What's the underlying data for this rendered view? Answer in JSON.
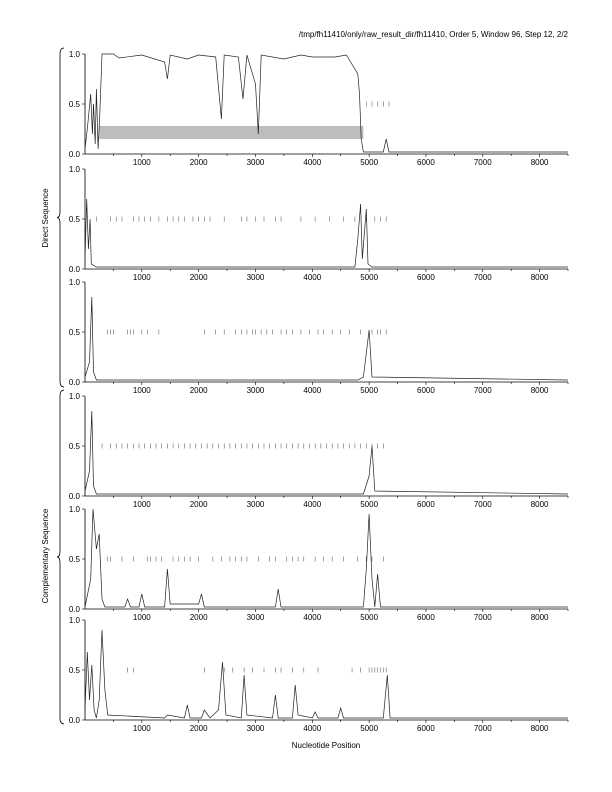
{
  "header": {
    "title": "/tmp/fh11410/only/raw_result_dir/fh11410, Order 5, Window 96, Step 12, 2/2"
  },
  "group_labels": {
    "direct": "Direct Sequence",
    "complementary": "Complementary Sequence"
  },
  "xlabel": "Nucleotide Position",
  "chart_data": {
    "type": "line",
    "title": "/tmp/fh11410/only/raw_result_dir/fh11410, Order 5, Window 96, Step 12, 2/2",
    "xlabel": "Nucleotide Position",
    "xlim": [
      0,
      8500
    ],
    "ylim": [
      0,
      1.0
    ],
    "x_ticks": [
      1000,
      2000,
      3000,
      4000,
      5000,
      6000,
      7000,
      8000
    ],
    "y_ticks": [
      0.0,
      0.5,
      1.0
    ],
    "grid": false,
    "legend": "none",
    "panels": [
      {
        "group": "Direct Sequence",
        "line": [
          [
            0,
            0.05
          ],
          [
            50,
            0.3
          ],
          [
            100,
            0.6
          ],
          [
            130,
            0.2
          ],
          [
            150,
            0.5
          ],
          [
            180,
            0.1
          ],
          [
            200,
            0.65
          ],
          [
            230,
            0.05
          ],
          [
            260,
            0.4
          ],
          [
            300,
            1.0
          ],
          [
            500,
            1.0
          ],
          [
            600,
            0.96
          ],
          [
            1000,
            0.99
          ],
          [
            1400,
            0.92
          ],
          [
            1450,
            0.75
          ],
          [
            1500,
            0.99
          ],
          [
            1800,
            0.95
          ],
          [
            2000,
            0.99
          ],
          [
            2300,
            0.97
          ],
          [
            2400,
            0.35
          ],
          [
            2450,
            0.99
          ],
          [
            2700,
            0.97
          ],
          [
            2780,
            0.55
          ],
          [
            2850,
            0.99
          ],
          [
            3000,
            0.7
          ],
          [
            3050,
            0.2
          ],
          [
            3100,
            0.99
          ],
          [
            3500,
            0.95
          ],
          [
            3800,
            0.99
          ],
          [
            4000,
            0.97
          ],
          [
            4400,
            0.97
          ],
          [
            4600,
            0.99
          ],
          [
            4800,
            0.8
          ],
          [
            4830,
            0.6
          ],
          [
            4860,
            0.15
          ],
          [
            4900,
            0.02
          ],
          [
            5200,
            0.02
          ],
          [
            5250,
            0.02
          ],
          [
            5300,
            0.15
          ],
          [
            5350,
            0.02
          ],
          [
            8500,
            0.02
          ]
        ],
        "band": {
          "x": [
            250,
            4900
          ],
          "y": [
            0.15,
            0.28
          ]
        },
        "ticks": [
          4950,
          5050,
          5150,
          5250,
          5350
        ]
      },
      {
        "group": "Direct Sequence",
        "line": [
          [
            0,
            0.1
          ],
          [
            30,
            0.7
          ],
          [
            60,
            0.2
          ],
          [
            90,
            0.5
          ],
          [
            110,
            0.05
          ],
          [
            200,
            0.02
          ],
          [
            4750,
            0.02
          ],
          [
            4800,
            0.3
          ],
          [
            4850,
            0.65
          ],
          [
            4880,
            0.1
          ],
          [
            4950,
            0.6
          ],
          [
            4980,
            0.05
          ],
          [
            5050,
            0.02
          ],
          [
            8500,
            0.02
          ]
        ],
        "ticks": [
          200,
          450,
          550,
          650,
          850,
          950,
          1050,
          1150,
          1300,
          1450,
          1550,
          1650,
          1750,
          1900,
          2000,
          2100,
          2200,
          2450,
          2750,
          2850,
          3000,
          3150,
          3350,
          3450,
          3800,
          4050,
          4300,
          4550,
          4750,
          4950,
          5100,
          5200,
          5300
        ]
      },
      {
        "group": "Direct Sequence",
        "line": [
          [
            0,
            0.05
          ],
          [
            80,
            0.2
          ],
          [
            120,
            0.85
          ],
          [
            150,
            0.1
          ],
          [
            200,
            0.02
          ],
          [
            4800,
            0.02
          ],
          [
            4900,
            0.05
          ],
          [
            5000,
            0.52
          ],
          [
            5050,
            0.05
          ],
          [
            8500,
            0.02
          ]
        ],
        "ticks": [
          400,
          450,
          500,
          750,
          800,
          850,
          1000,
          1100,
          1300,
          2100,
          2300,
          2450,
          2650,
          2750,
          2850,
          2950,
          3000,
          3100,
          3200,
          3300,
          3450,
          3550,
          3650,
          3800,
          3950,
          4100,
          4200,
          4350,
          4500,
          4650,
          4850,
          5050,
          5150,
          5200,
          5300
        ]
      },
      {
        "group": "Complementary Sequence",
        "line": [
          [
            0,
            0.05
          ],
          [
            80,
            0.25
          ],
          [
            120,
            0.85
          ],
          [
            150,
            0.1
          ],
          [
            200,
            0.02
          ],
          [
            4900,
            0.02
          ],
          [
            5000,
            0.2
          ],
          [
            5050,
            0.5
          ],
          [
            5100,
            0.05
          ],
          [
            8500,
            0.02
          ]
        ],
        "ticks": [
          300,
          450,
          550,
          650,
          750,
          850,
          950,
          1050,
          1150,
          1250,
          1350,
          1450,
          1550,
          1650,
          1750,
          1850,
          1950,
          2050,
          2150,
          2250,
          2350,
          2450,
          2550,
          2650,
          2750,
          2850,
          2950,
          3050,
          3150,
          3250,
          3350,
          3450,
          3550,
          3650,
          3750,
          3850,
          3950,
          4050,
          4150,
          4250,
          4350,
          4450,
          4550,
          4650,
          4750,
          4850,
          4950,
          5050,
          5150,
          5250
        ]
      },
      {
        "group": "Complementary Sequence",
        "line": [
          [
            0,
            0.02
          ],
          [
            100,
            0.3
          ],
          [
            140,
            1.0
          ],
          [
            200,
            0.6
          ],
          [
            250,
            0.75
          ],
          [
            300,
            0.1
          ],
          [
            350,
            0.02
          ],
          [
            700,
            0.02
          ],
          [
            750,
            0.1
          ],
          [
            800,
            0.02
          ],
          [
            950,
            0.02
          ],
          [
            1000,
            0.15
          ],
          [
            1050,
            0.02
          ],
          [
            1400,
            0.02
          ],
          [
            1450,
            0.4
          ],
          [
            1500,
            0.05
          ],
          [
            2000,
            0.05
          ],
          [
            2050,
            0.15
          ],
          [
            2100,
            0.02
          ],
          [
            3350,
            0.02
          ],
          [
            3400,
            0.2
          ],
          [
            3450,
            0.02
          ],
          [
            4900,
            0.02
          ],
          [
            4950,
            0.4
          ],
          [
            5000,
            0.95
          ],
          [
            5050,
            0.3
          ],
          [
            5100,
            0.02
          ],
          [
            5150,
            0.35
          ],
          [
            5200,
            0.02
          ],
          [
            8500,
            0.02
          ]
        ],
        "ticks": [
          400,
          450,
          650,
          850,
          1100,
          1150,
          1250,
          1350,
          1550,
          1650,
          1750,
          1850,
          2000,
          2250,
          2400,
          2550,
          2650,
          2750,
          2850,
          3050,
          3250,
          3350,
          3550,
          3650,
          3750,
          3850,
          4050,
          4200,
          4350,
          4550,
          4800,
          4950,
          5050,
          5250
        ]
      },
      {
        "group": "Complementary Sequence",
        "line": [
          [
            0,
            0.1
          ],
          [
            40,
            0.68
          ],
          [
            80,
            0.2
          ],
          [
            120,
            0.55
          ],
          [
            160,
            0.1
          ],
          [
            200,
            0.02
          ],
          [
            250,
            0.2
          ],
          [
            300,
            0.9
          ],
          [
            350,
            0.3
          ],
          [
            400,
            0.05
          ],
          [
            1400,
            0.02
          ],
          [
            1450,
            0.05
          ],
          [
            1750,
            0.02
          ],
          [
            1800,
            0.15
          ],
          [
            1850,
            0.02
          ],
          [
            2050,
            0.02
          ],
          [
            2100,
            0.1
          ],
          [
            2200,
            0.02
          ],
          [
            2350,
            0.1
          ],
          [
            2420,
            0.58
          ],
          [
            2480,
            0.05
          ],
          [
            2750,
            0.02
          ],
          [
            2800,
            0.45
          ],
          [
            2850,
            0.05
          ],
          [
            3300,
            0.02
          ],
          [
            3350,
            0.25
          ],
          [
            3400,
            0.02
          ],
          [
            3650,
            0.02
          ],
          [
            3700,
            0.35
          ],
          [
            3750,
            0.05
          ],
          [
            4000,
            0.02
          ],
          [
            4050,
            0.08
          ],
          [
            4100,
            0.02
          ],
          [
            4450,
            0.02
          ],
          [
            4500,
            0.12
          ],
          [
            4550,
            0.02
          ],
          [
            5250,
            0.02
          ],
          [
            5320,
            0.45
          ],
          [
            5370,
            0.02
          ],
          [
            8500,
            0.02
          ]
        ],
        "ticks": [
          750,
          850,
          2100,
          2450,
          2600,
          2800,
          2950,
          3150,
          3350,
          3450,
          3650,
          3850,
          4100,
          4700,
          4850,
          5000,
          5050,
          5100,
          5150,
          5200,
          5250,
          5300
        ]
      }
    ]
  }
}
